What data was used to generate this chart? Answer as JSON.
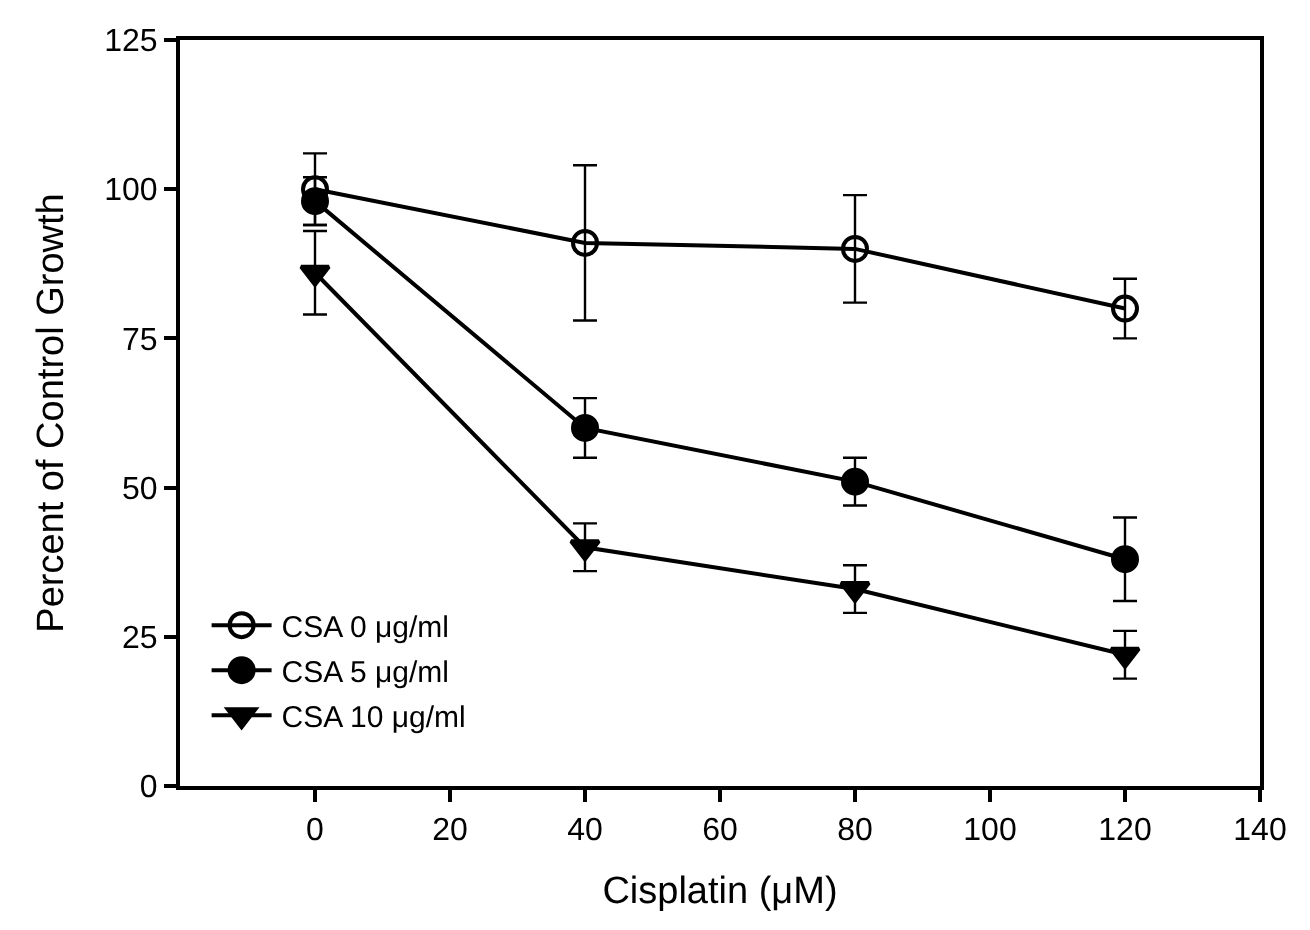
{
  "chart_data": {
    "type": "line",
    "xlabel": "Cisplatin (μM)",
    "ylabel": "Percent of Control Growth",
    "x": [
      0,
      40,
      80,
      120
    ],
    "xlim": [
      -20,
      140
    ],
    "xticks": [
      0,
      20,
      40,
      60,
      80,
      100,
      120,
      140
    ],
    "ylim": [
      0,
      125
    ],
    "yticks": [
      0,
      25,
      50,
      75,
      100,
      125
    ],
    "legend": "bottom left",
    "series": [
      {
        "name": "CSA 0 μg/ml",
        "color": "#000000",
        "marker": "circle-open",
        "values": [
          100,
          91,
          90,
          80
        ],
        "errors": [
          6,
          13,
          9,
          5
        ]
      },
      {
        "name": "CSA 5 μg/ml",
        "color": "#000000",
        "marker": "circle",
        "values": [
          98,
          60,
          51,
          38
        ],
        "errors": [
          4,
          5,
          4,
          7
        ]
      },
      {
        "name": "CSA 10 μg/ml",
        "color": "#000000",
        "marker": "triangle-down",
        "values": [
          86,
          40,
          33,
          22
        ],
        "errors": [
          7,
          4,
          4,
          4
        ]
      }
    ]
  }
}
